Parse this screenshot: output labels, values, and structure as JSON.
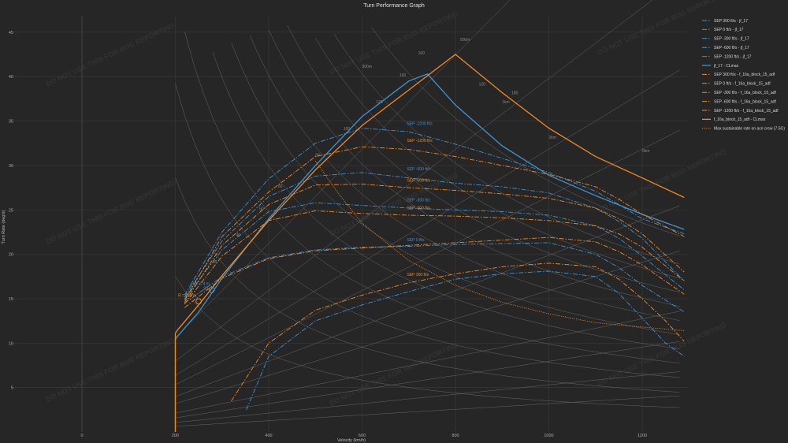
{
  "chart_data": {
    "type": "line",
    "title": "Turn Performance Graph",
    "xlabel": "Velocity (km/h)",
    "ylabel": "Turn Rate (deg/s)",
    "xlim": [
      -200,
      1300
    ],
    "ylim": [
      -1,
      46
    ],
    "xticks": [
      0,
      200,
      400,
      600,
      800,
      1000,
      1200
    ],
    "yticks": [
      5,
      10,
      15,
      20,
      25,
      30,
      35,
      40,
      45
    ],
    "grid": true,
    "legend_position": "right",
    "watermark": "DO NOT USE THIS FOR BUG REPORTING",
    "colors": {
      "jf17": "#3e93d4",
      "f16": "#f28a22",
      "grid": "#3a3a3a",
      "guide": "#6e6e6e"
    },
    "radius_labels": [
      "5km",
      "2km",
      "1km",
      "500m",
      "300m"
    ],
    "gload_labels": [
      "160",
      "160",
      "120",
      "100",
      "80",
      "60",
      "50",
      "40",
      "30",
      "20",
      "120",
      "180"
    ],
    "series": [
      {
        "name": "SEP 300 ft/s - jf_17",
        "color": "#3e93d4",
        "dash": "dashdot",
        "x": [
          352,
          400,
          500,
          600,
          700,
          800,
          900,
          1000,
          1100,
          1150,
          1200,
          1250,
          1290
        ],
        "y": [
          2.5,
          8.5,
          12.5,
          14.3,
          15.8,
          17.2,
          17.8,
          18.1,
          17.5,
          15.6,
          12.8,
          10.0,
          8.5
        ]
      },
      {
        "name": "SEP 0 ft/s - jf_17",
        "color": "#3e93d4",
        "dash": "dashdot",
        "x": [
          220,
          300,
          400,
          500,
          600,
          700,
          800,
          900,
          1000,
          1100,
          1150,
          1200,
          1290
        ],
        "y": [
          14.5,
          17.5,
          19.6,
          20.5,
          20.8,
          20.9,
          21.1,
          21.2,
          21.3,
          20.0,
          18.5,
          16.5,
          13.5
        ]
      },
      {
        "name": "SEP -300 ft/s - jf_17",
        "color": "#3e93d4",
        "dash": "dashdot",
        "x": [
          220,
          300,
          400,
          500,
          600,
          700,
          800,
          900,
          1000,
          1100,
          1150,
          1200,
          1290
        ],
        "y": [
          15.0,
          20.5,
          24.8,
          25.8,
          25.5,
          25.2,
          25.0,
          24.8,
          24.4,
          23.2,
          21.8,
          19.8,
          16.0
        ]
      },
      {
        "name": "SEP -600 ft/s - jf_17",
        "color": "#3e93d4",
        "dash": "dashdot",
        "x": [
          220,
          300,
          400,
          500,
          600,
          700,
          800,
          900,
          1000,
          1100,
          1150,
          1200,
          1290
        ],
        "y": [
          15.2,
          21.5,
          26.5,
          28.8,
          29.2,
          28.6,
          28.0,
          27.6,
          26.9,
          25.2,
          23.7,
          21.8,
          17.0
        ]
      },
      {
        "name": "SEP -1200 ft/s - jf_17",
        "color": "#3e93d4",
        "dash": "dashdot",
        "x": [
          220,
          300,
          400,
          500,
          600,
          700,
          800,
          900,
          1000,
          1100,
          1150,
          1200,
          1290
        ],
        "y": [
          15.4,
          22.5,
          28.5,
          32.5,
          34.2,
          33.8,
          32.4,
          30.8,
          29.2,
          27.1,
          25.6,
          24.0,
          22.3
        ]
      },
      {
        "name": "jf_17 - CLmax",
        "color": "#3e93d4",
        "dash": "solid",
        "x": [
          200,
          200,
          205,
          250,
          300,
          400,
          500,
          600,
          700,
          740,
          800,
          900,
          1000,
          1100,
          1200,
          1290
        ],
        "y": [
          0,
          10.4,
          10.8,
          13.5,
          17.3,
          24.0,
          30.0,
          35.5,
          39.5,
          40.3,
          36.8,
          32.2,
          28.9,
          26.6,
          24.5,
          22.8
        ]
      },
      {
        "name": "SEP 300 ft/s - f_16a_block_15_adf",
        "color": "#f28a22",
        "dash": "dashdot",
        "x": [
          320,
          400,
          500,
          600,
          700,
          800,
          900,
          1000,
          1100,
          1150,
          1200,
          1250,
          1290
        ],
        "y": [
          3.5,
          10.0,
          13.7,
          15.4,
          16.8,
          17.8,
          18.6,
          19.0,
          18.6,
          17.2,
          15.0,
          12.5,
          10.2
        ]
      },
      {
        "name": "SEP 0 ft/s - f_16a_block_15_adf",
        "color": "#f28a22",
        "dash": "dashdot",
        "x": [
          220,
          300,
          400,
          500,
          600,
          700,
          800,
          900,
          1000,
          1100,
          1150,
          1200,
          1290
        ],
        "y": [
          14.0,
          17.3,
          19.5,
          20.4,
          20.7,
          21.0,
          21.3,
          21.6,
          21.9,
          21.4,
          20.3,
          18.8,
          15.5
        ]
      },
      {
        "name": "SEP -300 ft/s - f_16a_block_15_adf",
        "color": "#f28a22",
        "dash": "dashdot",
        "x": [
          220,
          300,
          400,
          500,
          600,
          700,
          800,
          900,
          1000,
          1100,
          1150,
          1200,
          1290
        ],
        "y": [
          14.4,
          19.8,
          23.8,
          24.9,
          24.6,
          24.4,
          24.3,
          24.1,
          23.8,
          23.2,
          22.3,
          20.8,
          17.0
        ]
      },
      {
        "name": "SEP -600 ft/s - f_16a_block_15_adf",
        "color": "#f28a22",
        "dash": "dashdot",
        "x": [
          220,
          300,
          400,
          500,
          600,
          700,
          800,
          900,
          1000,
          1100,
          1150,
          1200,
          1290
        ],
        "y": [
          14.6,
          21.0,
          25.6,
          27.8,
          27.9,
          27.5,
          27.2,
          26.8,
          26.3,
          25.2,
          24.0,
          22.3,
          18.0
        ]
      },
      {
        "name": "SEP -1200 ft/s - f_16a_block_15_adf",
        "color": "#f28a22",
        "dash": "dashdot",
        "x": [
          220,
          300,
          400,
          500,
          600,
          700,
          800,
          900,
          1000,
          1100,
          1150,
          1200,
          1290
        ],
        "y": [
          14.8,
          22.0,
          27.0,
          31.0,
          32.1,
          31.8,
          31.0,
          30.0,
          29.0,
          27.6,
          26.2,
          24.5,
          22.0
        ]
      },
      {
        "name": "f_16a_block_15_adf - CLmax",
        "color": "#f28a22",
        "dash": "solid",
        "x": [
          200,
          200,
          205,
          250,
          300,
          400,
          500,
          600,
          700,
          800,
          900,
          1000,
          1100,
          1200,
          1290
        ],
        "y": [
          0,
          11.1,
          11.5,
          14.3,
          17.6,
          23.8,
          29.5,
          34.5,
          38.5,
          42.5,
          38.2,
          34.2,
          31.0,
          28.6,
          26.4
        ]
      },
      {
        "name": "Max sustainable rate on ace crew (7.5G)",
        "color": "#f28a22",
        "dash": "dotted",
        "x": [
          500,
          550,
          600,
          700,
          800,
          900,
          1000,
          1100,
          1200,
          1290
        ],
        "y": [
          30.5,
          26.8,
          23.5,
          19.3,
          16.5,
          14.6,
          13.3,
          12.3,
          11.8,
          11.4
        ]
      }
    ],
    "annotations": [
      {
        "text": "R = 258 m",
        "x": 250,
        "y": 14.7,
        "color": "#f28a22"
      },
      {
        "text": "R = 274 m",
        "x": 278,
        "y": 16.0,
        "color": "#3e93d4"
      },
      {
        "text": "SEP -1200 ft/s",
        "x": 730,
        "y": 34.3,
        "color": "#3e93d4"
      },
      {
        "text": "SEP -1200 ft/s",
        "x": 730,
        "y": 32.4,
        "color": "#f28a22"
      },
      {
        "text": "SEP -600 ft/s",
        "x": 730,
        "y": 29.2,
        "color": "#3e93d4"
      },
      {
        "text": "SEP -600 ft/s",
        "x": 730,
        "y": 27.9,
        "color": "#f28a22"
      },
      {
        "text": "SEP -300 ft/s",
        "x": 730,
        "y": 25.7,
        "color": "#3e93d4"
      },
      {
        "text": "SEP -300 ft/s",
        "x": 730,
        "y": 24.8,
        "color": "#f28a22"
      },
      {
        "text": "SEP 0 ft/s",
        "x": 730,
        "y": 21.2,
        "color": "#3e93d4"
      },
      {
        "text": "SEP 300 ft/s",
        "x": 730,
        "y": 17.3,
        "color": "#f28a22"
      }
    ]
  }
}
